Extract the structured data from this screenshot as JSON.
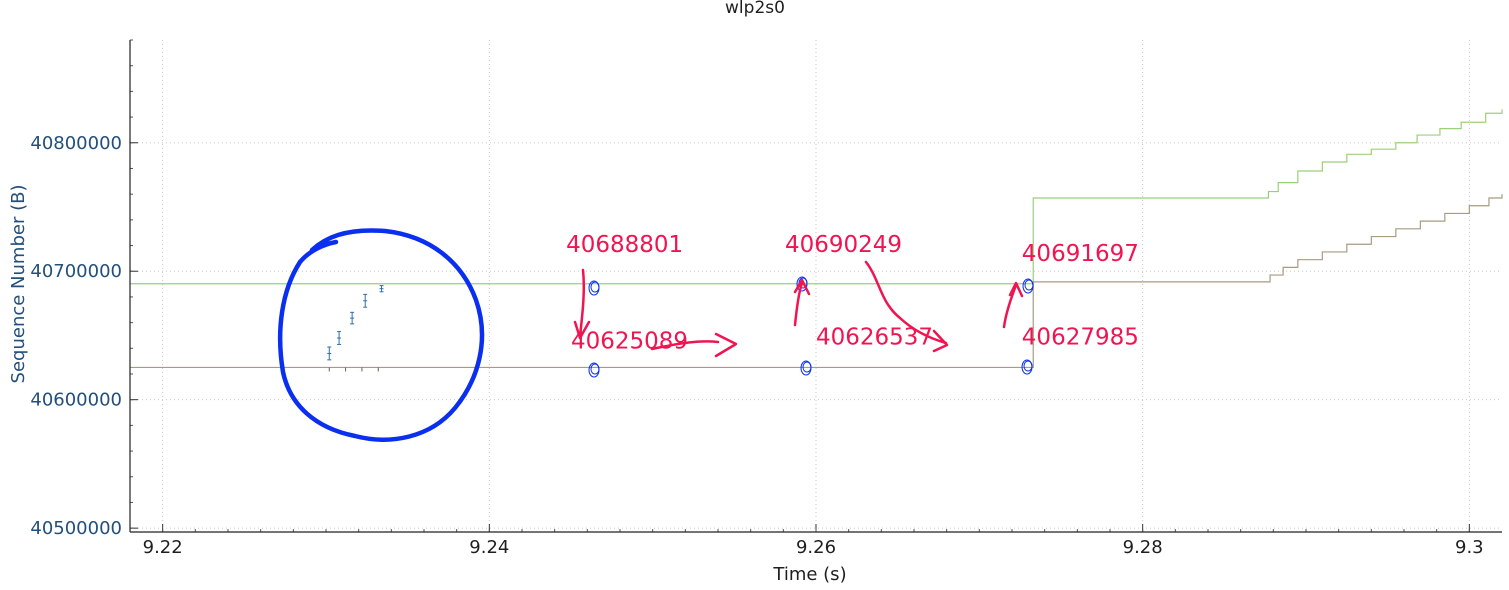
{
  "chart_data": {
    "type": "line",
    "title": "wlp2s0",
    "xlabel": "Time (s)",
    "ylabel": "Sequence Number (B)",
    "xlim": [
      9.218,
      9.302
    ],
    "ylim": [
      40497000,
      40880000
    ],
    "x_ticks": [
      {
        "value": 9.22,
        "label": "9.22"
      },
      {
        "value": 9.24,
        "label": "9.24"
      },
      {
        "value": 9.26,
        "label": "9.26"
      },
      {
        "value": 9.28,
        "label": "9.28"
      },
      {
        "value": 9.3,
        "label": "9.3"
      }
    ],
    "y_ticks": [
      {
        "value": 40500000,
        "label": "40500000"
      },
      {
        "value": 40600000,
        "label": "40600000"
      },
      {
        "value": 40700000,
        "label": "40700000"
      },
      {
        "value": 40800000,
        "label": "40800000"
      }
    ],
    "grid": true,
    "series": [
      {
        "color": "#9ccf7a",
        "step": true,
        "points": [
          [
            9.218,
            40690249
          ],
          [
            9.2733,
            40691697
          ],
          [
            9.2733,
            40757000
          ],
          [
            9.2875,
            40757000
          ],
          [
            9.2877,
            40762000
          ],
          [
            9.2883,
            40769000
          ],
          [
            9.2895,
            40778000
          ],
          [
            9.291,
            40785000
          ],
          [
            9.2925,
            40791000
          ],
          [
            9.294,
            40795000
          ],
          [
            9.2955,
            40800000
          ],
          [
            9.2968,
            40806000
          ],
          [
            9.2982,
            40811000
          ],
          [
            9.2995,
            40816000
          ],
          [
            9.301,
            40823000
          ],
          [
            9.302,
            40826000
          ]
        ]
      },
      {
        "color": "#a99a84",
        "step": true,
        "points": [
          [
            9.218,
            40625089
          ],
          [
            9.2733,
            40627985
          ],
          [
            9.2733,
            40691697
          ],
          [
            9.2875,
            40691697
          ],
          [
            9.2878,
            40697000
          ],
          [
            9.2886,
            40703000
          ],
          [
            9.2895,
            40709000
          ],
          [
            9.291,
            40715000
          ],
          [
            9.2925,
            40721000
          ],
          [
            9.294,
            40727000
          ],
          [
            9.2955,
            40733000
          ],
          [
            9.297,
            40739000
          ],
          [
            9.2985,
            40745000
          ],
          [
            9.3,
            40751000
          ],
          [
            9.3012,
            40757000
          ],
          [
            9.302,
            40760000
          ]
        ]
      }
    ],
    "segment_marks": {
      "color": "#2f6db0",
      "segments": [
        [
          9.2302,
          40631000,
          40641000
        ],
        [
          9.2308,
          40643000,
          40653000
        ],
        [
          9.2316,
          40659000,
          40668000
        ],
        [
          9.2324,
          40672000,
          40682000
        ],
        [
          9.2334,
          40684000,
          40688801
        ]
      ]
    },
    "ack_ticks": {
      "color": "#7a5a3a",
      "x": [
        9.2302,
        9.2312,
        9.2322,
        9.2332
      ]
    },
    "annotations": {
      "circle_color": "#0a2ff0",
      "text_color": "#f01451",
      "labels": [
        {
          "text": "40688801",
          "x": 9.2447,
          "y": 40715000
        },
        {
          "text": "40625089",
          "x": 9.245,
          "y": 40640000
        },
        {
          "text": "40690249",
          "x": 9.2581,
          "y": 40715000
        },
        {
          "text": "40626537",
          "x": 9.26,
          "y": 40643000
        },
        {
          "text": "40691697",
          "x": 9.2726,
          "y": 40708000
        },
        {
          "text": "40627985",
          "x": 9.2726,
          "y": 40643000
        }
      ]
    }
  }
}
